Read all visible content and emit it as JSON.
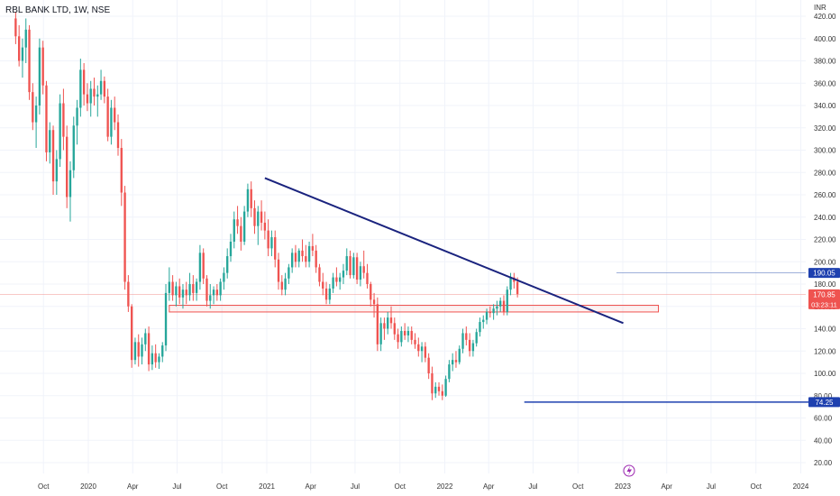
{
  "header": {
    "title": "RBL BANK LTD, 1W, NSE"
  },
  "currency": "INR",
  "colors": {
    "up": "#26a69a",
    "down": "#ef5350",
    "trendline": "#1a237e",
    "support_line": "#1e40af",
    "zone_stroke": "#ef5350",
    "zone_fill": "rgba(239,83,80,0.08)",
    "label_blue": "#1e40af",
    "label_red": "#ef5350",
    "grid": "#f0f3fa"
  },
  "chart_data": {
    "type": "candlestick",
    "y_range": [
      15,
      430
    ],
    "x_range": [
      "2019-08-05",
      "2024-01-15"
    ],
    "yticks": [
      "420.00",
      "400.00",
      "380.00",
      "360.00",
      "340.00",
      "320.00",
      "300.00",
      "280.00",
      "260.00",
      "240.00",
      "220.00",
      "200.00",
      "180.00",
      "160.00",
      "140.00",
      "120.00",
      "100.00",
      "80.00",
      "60.00",
      "40.00",
      "20.00"
    ],
    "xticks": [
      {
        "date": "2019-10-01",
        "label": "Oct"
      },
      {
        "date": "2020-01-01",
        "label": "2020"
      },
      {
        "date": "2020-04-01",
        "label": "Apr"
      },
      {
        "date": "2020-07-01",
        "label": "Jul"
      },
      {
        "date": "2020-10-01",
        "label": "Oct"
      },
      {
        "date": "2021-01-01",
        "label": "2021"
      },
      {
        "date": "2021-04-01",
        "label": "Apr"
      },
      {
        "date": "2021-07-01",
        "label": "Jul"
      },
      {
        "date": "2021-10-01",
        "label": "Oct"
      },
      {
        "date": "2022-01-01",
        "label": "2022"
      },
      {
        "date": "2022-04-01",
        "label": "Apr"
      },
      {
        "date": "2022-07-01",
        "label": "Jul"
      },
      {
        "date": "2022-10-01",
        "label": "Oct"
      },
      {
        "date": "2023-01-01",
        "label": "2023"
      },
      {
        "date": "2023-04-01",
        "label": "Apr"
      },
      {
        "date": "2023-07-01",
        "label": "Jul"
      },
      {
        "date": "2023-10-01",
        "label": "Oct"
      },
      {
        "date": "2024-01-01",
        "label": "2024"
      }
    ],
    "candle_start": "2019-08-05",
    "candle_interval_days": 7,
    "ohlc": [
      [
        418,
        424,
        395,
        402
      ],
      [
        402,
        412,
        375,
        380
      ],
      [
        380,
        400,
        365,
        392
      ],
      [
        392,
        418,
        378,
        408
      ],
      [
        408,
        412,
        345,
        352
      ],
      [
        352,
        360,
        318,
        325
      ],
      [
        325,
        348,
        302,
        340
      ],
      [
        340,
        400,
        332,
        392
      ],
      [
        392,
        398,
        350,
        358
      ],
      [
        358,
        362,
        290,
        298
      ],
      [
        298,
        325,
        288,
        318
      ],
      [
        318,
        322,
        260,
        272
      ],
      [
        272,
        300,
        260,
        292
      ],
      [
        292,
        350,
        285,
        342
      ],
      [
        342,
        355,
        300,
        312
      ],
      [
        312,
        322,
        248,
        258
      ],
      [
        258,
        290,
        236,
        282
      ],
      [
        282,
        330,
        275,
        322
      ],
      [
        322,
        345,
        305,
        338
      ],
      [
        338,
        382,
        330,
        372
      ],
      [
        372,
        378,
        340,
        350
      ],
      [
        350,
        360,
        335,
        342
      ],
      [
        342,
        362,
        330,
        355
      ],
      [
        355,
        365,
        340,
        348
      ],
      [
        348,
        358,
        330,
        350
      ],
      [
        350,
        372,
        345,
        362
      ],
      [
        362,
        366,
        342,
        348
      ],
      [
        348,
        355,
        308,
        312
      ],
      [
        312,
        345,
        305,
        338
      ],
      [
        338,
        348,
        318,
        325
      ],
      [
        325,
        332,
        295,
        302
      ],
      [
        302,
        310,
        250,
        262
      ],
      [
        262,
        268,
        175,
        182
      ],
      [
        182,
        188,
        155,
        160
      ],
      [
        160,
        162,
        105,
        112
      ],
      [
        112,
        132,
        108,
        128
      ],
      [
        128,
        135,
        106,
        115
      ],
      [
        115,
        132,
        108,
        126
      ],
      [
        126,
        140,
        120,
        136
      ],
      [
        136,
        142,
        102,
        108
      ],
      [
        108,
        125,
        103,
        118
      ],
      [
        118,
        126,
        105,
        110
      ],
      [
        110,
        118,
        104,
        115
      ],
      [
        115,
        128,
        110,
        125
      ],
      [
        125,
        180,
        120,
        172
      ],
      [
        172,
        195,
        165,
        182
      ],
      [
        182,
        188,
        165,
        170
      ],
      [
        170,
        182,
        160,
        178
      ],
      [
        178,
        185,
        162,
        168
      ],
      [
        168,
        180,
        158,
        175
      ],
      [
        175,
        182,
        162,
        170
      ],
      [
        170,
        190,
        165,
        180
      ],
      [
        180,
        188,
        165,
        172
      ],
      [
        172,
        185,
        165,
        182
      ],
      [
        182,
        215,
        175,
        208
      ],
      [
        208,
        212,
        180,
        185
      ],
      [
        185,
        188,
        160,
        165
      ],
      [
        165,
        180,
        158,
        170
      ],
      [
        170,
        178,
        162,
        175
      ],
      [
        175,
        180,
        165,
        170
      ],
      [
        170,
        185,
        165,
        182
      ],
      [
        182,
        195,
        175,
        190
      ],
      [
        190,
        212,
        185,
        205
      ],
      [
        205,
        225,
        200,
        218
      ],
      [
        218,
        245,
        212,
        238
      ],
      [
        238,
        250,
        225,
        232
      ],
      [
        232,
        240,
        210,
        218
      ],
      [
        218,
        250,
        215,
        245
      ],
      [
        245,
        270,
        240,
        265
      ],
      [
        265,
        272,
        240,
        248
      ],
      [
        248,
        255,
        225,
        232
      ],
      [
        232,
        250,
        215,
        245
      ],
      [
        245,
        255,
        228,
        235
      ],
      [
        235,
        245,
        220,
        228
      ],
      [
        228,
        238,
        205,
        212
      ],
      [
        212,
        228,
        205,
        222
      ],
      [
        222,
        228,
        195,
        202
      ],
      [
        202,
        208,
        175,
        182
      ],
      [
        182,
        188,
        170,
        175
      ],
      [
        175,
        190,
        170,
        185
      ],
      [
        185,
        198,
        180,
        195
      ],
      [
        195,
        212,
        190,
        208
      ],
      [
        208,
        215,
        195,
        200
      ],
      [
        200,
        212,
        195,
        210
      ],
      [
        210,
        220,
        200,
        205
      ],
      [
        205,
        215,
        195,
        200
      ],
      [
        200,
        218,
        195,
        214
      ],
      [
        214,
        225,
        205,
        210
      ],
      [
        210,
        215,
        190,
        195
      ],
      [
        195,
        198,
        178,
        182
      ],
      [
        182,
        190,
        170,
        176
      ],
      [
        176,
        182,
        162,
        166
      ],
      [
        166,
        180,
        162,
        176
      ],
      [
        176,
        190,
        172,
        186
      ],
      [
        186,
        195,
        178,
        182
      ],
      [
        182,
        190,
        175,
        186
      ],
      [
        186,
        198,
        180,
        192
      ],
      [
        192,
        212,
        188,
        205
      ],
      [
        205,
        210,
        185,
        188
      ],
      [
        188,
        208,
        185,
        204
      ],
      [
        204,
        208,
        180,
        184
      ],
      [
        184,
        200,
        178,
        196
      ],
      [
        196,
        210,
        185,
        190
      ],
      [
        190,
        198,
        176,
        180
      ],
      [
        180,
        182,
        160,
        166
      ],
      [
        166,
        172,
        150,
        162
      ],
      [
        162,
        168,
        120,
        126
      ],
      [
        126,
        150,
        120,
        145
      ],
      [
        145,
        150,
        130,
        140
      ],
      [
        140,
        155,
        135,
        150
      ],
      [
        150,
        160,
        140,
        145
      ],
      [
        145,
        150,
        130,
        135
      ],
      [
        135,
        140,
        122,
        128
      ],
      [
        128,
        142,
        124,
        138
      ],
      [
        138,
        145,
        130,
        134
      ],
      [
        134,
        142,
        128,
        138
      ],
      [
        138,
        142,
        126,
        130
      ],
      [
        130,
        136,
        122,
        126
      ],
      [
        126,
        132,
        115,
        120
      ],
      [
        120,
        128,
        110,
        124
      ],
      [
        124,
        128,
        110,
        114
      ],
      [
        114,
        118,
        95,
        100
      ],
      [
        100,
        106,
        76,
        82
      ],
      [
        82,
        92,
        78,
        88
      ],
      [
        88,
        92,
        80,
        84
      ],
      [
        84,
        90,
        76,
        80
      ],
      [
        80,
        98,
        79,
        95
      ],
      [
        95,
        112,
        92,
        108
      ],
      [
        108,
        118,
        102,
        112
      ],
      [
        112,
        120,
        105,
        110
      ],
      [
        110,
        125,
        108,
        122
      ],
      [
        122,
        140,
        118,
        136
      ],
      [
        136,
        142,
        125,
        130
      ],
      [
        130,
        136,
        115,
        120
      ],
      [
        120,
        130,
        115,
        127
      ],
      [
        127,
        140,
        124,
        137
      ],
      [
        137,
        150,
        133,
        146
      ],
      [
        146,
        152,
        140,
        148
      ],
      [
        148,
        158,
        144,
        155
      ],
      [
        155,
        160,
        150,
        154
      ],
      [
        154,
        162,
        148,
        158
      ],
      [
        158,
        165,
        152,
        160
      ],
      [
        160,
        168,
        155,
        165
      ],
      [
        165,
        170,
        152,
        155
      ],
      [
        155,
        178,
        152,
        175
      ],
      [
        175,
        190,
        170,
        186
      ],
      [
        186,
        190,
        176,
        182
      ],
      [
        182,
        186,
        168,
        171
      ]
    ],
    "lines": [
      {
        "kind": "trendline",
        "from": {
          "date": "2020-12-28",
          "price": 275
        },
        "to": {
          "date": "2023-01-02",
          "price": 145
        }
      },
      {
        "kind": "horizontal",
        "from": {
          "date": "2022-06-13",
          "price": 74.25
        },
        "to": {
          "date": "2024-01-22",
          "price": 74.25
        }
      }
    ],
    "zone": {
      "from_date": "2020-06-15",
      "to_date": "2023-03-15",
      "price_low": 155,
      "price_high": 161
    },
    "reference_line": {
      "price": 190.05,
      "from_date": "2022-12-19"
    },
    "price_labels": [
      {
        "price": 190.05,
        "text": "190.05",
        "color": "label_blue"
      },
      {
        "price": 170.85,
        "text": "170.85",
        "sub": "03:23:11",
        "color": "label_red"
      },
      {
        "price": 74.25,
        "text": "74.25",
        "color": "label_blue"
      }
    ]
  },
  "footer": {
    "icon": "lightning-icon"
  }
}
